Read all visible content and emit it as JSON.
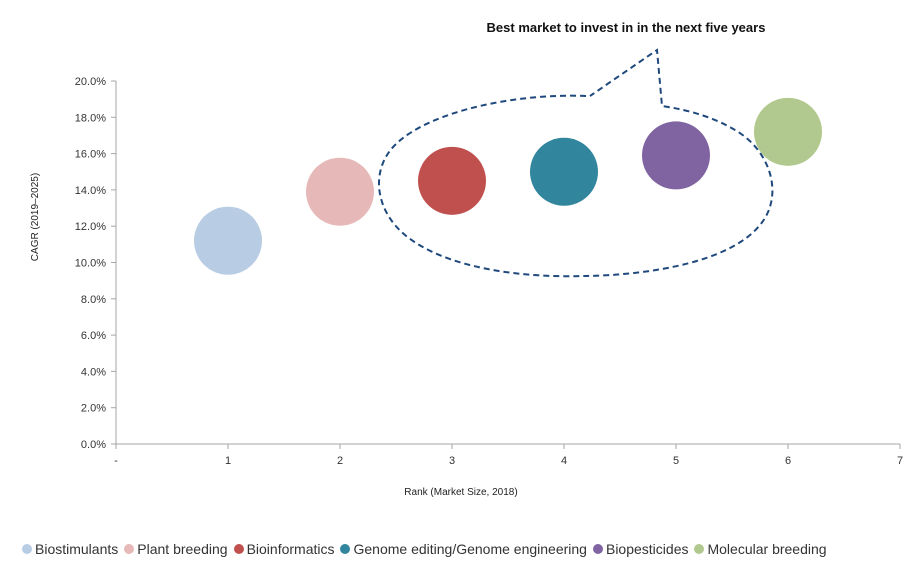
{
  "chart_data": {
    "type": "scatter",
    "title": "",
    "xlabel": "Rank (Market Size, 2018)",
    "ylabel": "CAGR (2019–2025)",
    "xlim": [
      0,
      7
    ],
    "ylim": [
      0,
      20
    ],
    "x_tick_labels": [
      "-",
      "1",
      "2",
      "3",
      "4",
      "5",
      "6",
      "7"
    ],
    "y_tick_labels": [
      "0.0%",
      "2.0%",
      "4.0%",
      "6.0%",
      "8.0%",
      "10.0%",
      "12.0%",
      "14.0%",
      "16.0%",
      "18.0%",
      "20.0%"
    ],
    "grid": false,
    "legend_position": "bottom",
    "annotation": "Best market to invest in in the next five years",
    "series": [
      {
        "name": "Biostimulants",
        "x": 1,
        "y": 11.2,
        "color": "#b8cce4"
      },
      {
        "name": "Plant breeding",
        "x": 2,
        "y": 13.9,
        "color": "#e6b9b8"
      },
      {
        "name": "Bioinformatics",
        "x": 3,
        "y": 14.5,
        "color": "#c0504d"
      },
      {
        "name": "Genome editing/Genome engineering",
        "x": 4,
        "y": 15.0,
        "color": "#31859c"
      },
      {
        "name": "Biopesticides",
        "x": 5,
        "y": 15.9,
        "color": "#8064a2"
      },
      {
        "name": "Molecular breeding",
        "x": 6,
        "y": 17.2,
        "color": "#b1c98e"
      }
    ]
  }
}
